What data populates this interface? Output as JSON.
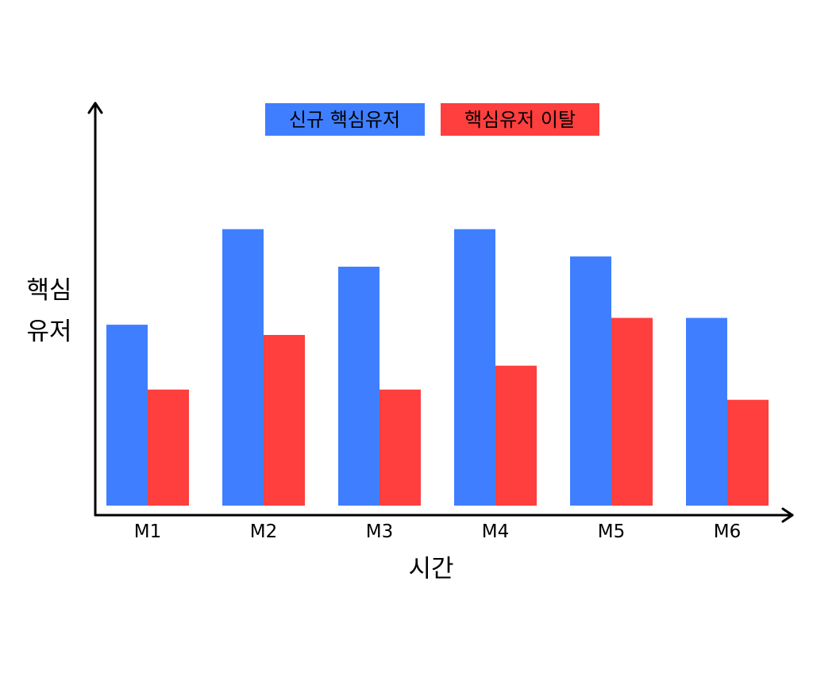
{
  "chart_data": {
    "type": "bar",
    "title": "",
    "xlabel": "시간",
    "ylabel_lines": [
      "핵심",
      "유저"
    ],
    "categories": [
      "M1",
      "M2",
      "M3",
      "M4",
      "M5",
      "M6"
    ],
    "ylim": [
      0,
      100
    ],
    "grid": false,
    "legend_position": "top-center",
    "series": [
      {
        "name": "신규 핵심유저",
        "color": "#3f7fff",
        "values": [
          53,
          81,
          70,
          81,
          73,
          55
        ]
      },
      {
        "name": "핵심유저 이탈",
        "color": "#ff3e3e",
        "values": [
          34,
          50,
          34,
          41,
          55,
          31
        ]
      }
    ]
  }
}
